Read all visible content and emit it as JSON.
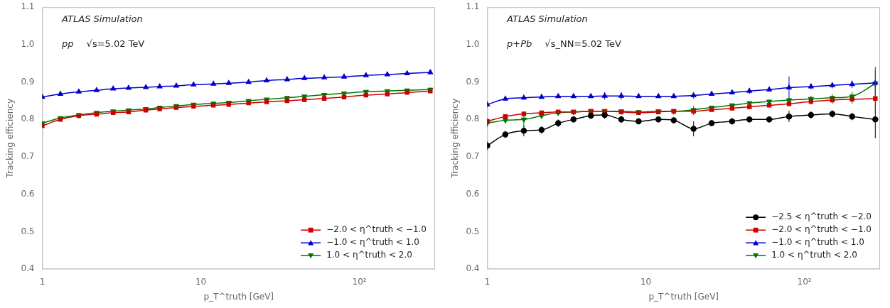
{
  "chart_data": [
    {
      "type": "line",
      "log": "x",
      "grid": false,
      "legend": "lower right",
      "xlabel": "p_T^truth [GeV]",
      "ylabel": "Tracking efficiency",
      "annotations": [
        "ATLAS Simulation",
        "pp",
        "√s=5.02 TeV"
      ],
      "xlim": [
        1,
        300
      ],
      "xticks": [
        1,
        10,
        {
          "value": 100,
          "label": "10²"
        }
      ],
      "ylim": [
        0.4,
        1.1
      ],
      "yticks": [
        0.4,
        0.5,
        0.6,
        0.7,
        0.8,
        0.9,
        {
          "value": 1.0,
          "label": "1.0"
        },
        1.1
      ],
      "x": [
        1.0,
        1.3,
        1.7,
        2.2,
        2.8,
        3.5,
        4.5,
        5.5,
        7.0,
        9.0,
        12,
        15,
        20,
        26,
        35,
        45,
        60,
        80,
        110,
        150,
        200,
        280
      ],
      "series": [
        {
          "name": "−2.0 < η^truth < −1.0",
          "color": "#cc0000",
          "marker": "square",
          "values": [
            0.783,
            0.8,
            0.81,
            0.814,
            0.818,
            0.82,
            0.825,
            0.828,
            0.832,
            0.835,
            0.838,
            0.84,
            0.844,
            0.847,
            0.85,
            0.853,
            0.856,
            0.86,
            0.865,
            0.868,
            0.872,
            0.876
          ],
          "yerr": [
            0.004,
            0.003,
            0.003,
            0.003,
            0.002,
            0.002,
            0.002,
            0.002,
            0.002,
            0.002,
            0.002,
            0.002,
            0.002,
            0.002,
            0.002,
            0.002,
            0.002,
            0.002,
            0.003,
            0.003,
            0.004,
            0.005
          ]
        },
        {
          "name": "−1.0 < η^truth < 1.0",
          "color": "#0000cc",
          "marker": "triangle-up",
          "values": [
            0.86,
            0.868,
            0.874,
            0.878,
            0.882,
            0.884,
            0.886,
            0.888,
            0.89,
            0.893,
            0.895,
            0.897,
            0.9,
            0.904,
            0.907,
            0.91,
            0.912,
            0.914,
            0.918,
            0.92,
            0.923,
            0.926
          ],
          "yerr": [
            0.003,
            0.002,
            0.002,
            0.002,
            0.002,
            0.002,
            0.002,
            0.002,
            0.002,
            0.002,
            0.002,
            0.002,
            0.002,
            0.002,
            0.002,
            0.002,
            0.002,
            0.002,
            0.002,
            0.003,
            0.004,
            0.006
          ]
        },
        {
          "name": "1.0 < η^truth < 2.0",
          "color": "#007700",
          "marker": "triangle-down",
          "values": [
            0.79,
            0.804,
            0.812,
            0.818,
            0.822,
            0.825,
            0.828,
            0.832,
            0.836,
            0.84,
            0.843,
            0.845,
            0.85,
            0.854,
            0.858,
            0.862,
            0.866,
            0.87,
            0.874,
            0.876,
            0.878,
            0.88
          ],
          "yerr": [
            0.004,
            0.003,
            0.003,
            0.003,
            0.002,
            0.002,
            0.002,
            0.002,
            0.002,
            0.002,
            0.002,
            0.002,
            0.002,
            0.002,
            0.002,
            0.002,
            0.002,
            0.002,
            0.003,
            0.003,
            0.004,
            0.006
          ]
        }
      ]
    },
    {
      "type": "line",
      "log": "x",
      "grid": false,
      "legend": "lower right",
      "xlabel": "p_T^truth [GeV]",
      "ylabel": "Tracking efficiency",
      "annotations": [
        "ATLAS Simulation",
        "p+Pb",
        "√s_NN=5.02 TeV"
      ],
      "xlim": [
        1,
        300
      ],
      "xticks": [
        1,
        10,
        {
          "value": 100,
          "label": "10²"
        }
      ],
      "ylim": [
        0.4,
        1.1
      ],
      "yticks": [
        0.4,
        0.5,
        0.6,
        0.7,
        0.8,
        0.9,
        {
          "value": 1.0,
          "label": "1.0"
        },
        1.1
      ],
      "x": [
        1.0,
        1.3,
        1.7,
        2.2,
        2.8,
        3.5,
        4.5,
        5.5,
        7.0,
        9.0,
        12,
        15,
        20,
        26,
        35,
        45,
        60,
        80,
        110,
        150,
        200,
        280
      ],
      "series": [
        {
          "name": "−2.5 < η^truth < −2.0",
          "color": "#000000",
          "marker": "circle",
          "values": [
            0.73,
            0.76,
            0.77,
            0.772,
            0.79,
            0.8,
            0.81,
            0.812,
            0.8,
            0.795,
            0.8,
            0.798,
            0.775,
            0.79,
            0.795,
            0.8,
            0.8,
            0.808,
            0.812,
            0.815,
            0.808,
            0.8
          ],
          "yerr": [
            0.012,
            0.01,
            0.015,
            0.01,
            0.01,
            0.008,
            0.008,
            0.01,
            0.01,
            0.008,
            0.008,
            0.008,
            0.02,
            0.008,
            0.008,
            0.008,
            0.008,
            0.015,
            0.01,
            0.01,
            0.01,
            0.05
          ]
        },
        {
          "name": "−2.0 < η^truth < −1.0",
          "color": "#cc0000",
          "marker": "square",
          "values": [
            0.795,
            0.808,
            0.815,
            0.818,
            0.82,
            0.82,
            0.822,
            0.822,
            0.82,
            0.818,
            0.82,
            0.822,
            0.822,
            0.826,
            0.83,
            0.834,
            0.838,
            0.842,
            0.848,
            0.852,
            0.854,
            0.856
          ],
          "yerr": [
            0.008,
            0.006,
            0.006,
            0.006,
            0.005,
            0.005,
            0.005,
            0.005,
            0.005,
            0.005,
            0.005,
            0.006,
            0.01,
            0.005,
            0.005,
            0.005,
            0.005,
            0.006,
            0.008,
            0.01,
            0.012,
            0.04
          ]
        },
        {
          "name": "−1.0 < η^truth < 1.0",
          "color": "#0000cc",
          "marker": "triangle-up",
          "values": [
            0.84,
            0.855,
            0.858,
            0.86,
            0.862,
            0.862,
            0.862,
            0.863,
            0.863,
            0.862,
            0.862,
            0.862,
            0.864,
            0.868,
            0.872,
            0.876,
            0.88,
            0.885,
            0.888,
            0.891,
            0.894,
            0.898
          ],
          "yerr": [
            0.008,
            0.005,
            0.005,
            0.005,
            0.004,
            0.004,
            0.004,
            0.01,
            0.01,
            0.004,
            0.004,
            0.004,
            0.008,
            0.005,
            0.005,
            0.008,
            0.006,
            0.03,
            0.008,
            0.008,
            0.01,
            0.035
          ]
        },
        {
          "name": "1.0 < η^truth < 2.0",
          "color": "#007700",
          "marker": "triangle-down",
          "values": [
            0.79,
            0.798,
            0.8,
            0.81,
            0.818,
            0.82,
            0.822,
            0.822,
            0.822,
            0.82,
            0.822,
            0.822,
            0.826,
            0.832,
            0.838,
            0.844,
            0.848,
            0.852,
            0.855,
            0.858,
            0.862,
            0.896
          ],
          "yerr": [
            0.01,
            0.008,
            0.02,
            0.006,
            0.005,
            0.005,
            0.005,
            0.005,
            0.005,
            0.005,
            0.005,
            0.005,
            0.01,
            0.005,
            0.005,
            0.005,
            0.005,
            0.006,
            0.008,
            0.01,
            0.012,
            0.045
          ]
        }
      ]
    }
  ]
}
